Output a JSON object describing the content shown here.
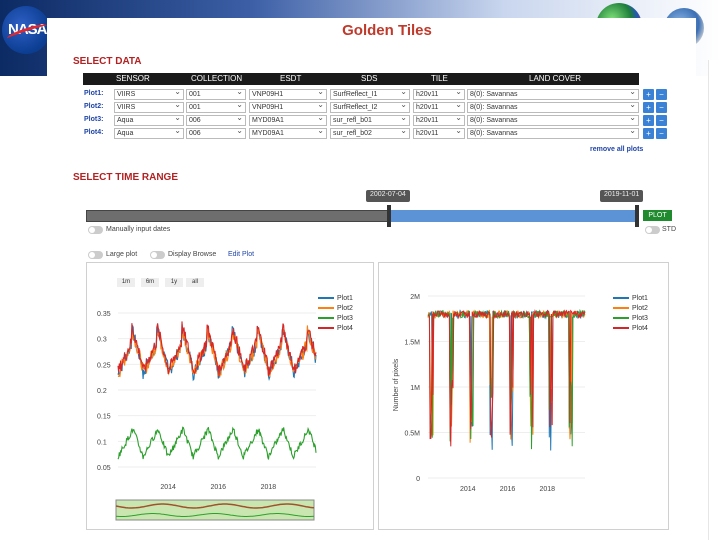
{
  "app": {
    "title": "Golden Tiles"
  },
  "select_data": {
    "title": "SELECT DATA",
    "columns": [
      "SENSOR",
      "COLLECTION",
      "ESDT",
      "SDS",
      "TILE",
      "LAND COVER"
    ],
    "rows": [
      {
        "label": "Plot1:",
        "sensor": "VIIRS",
        "collection": "001",
        "esdt": "VNP09H1",
        "sds": "SurfReflect_I1",
        "tile": "h20v11",
        "landcover": "8(0): Savannas"
      },
      {
        "label": "Plot2:",
        "sensor": "VIIRS",
        "collection": "001",
        "esdt": "VNP09H1",
        "sds": "SurfReflect_I2",
        "tile": "h20v11",
        "landcover": "8(0): Savannas"
      },
      {
        "label": "Plot3:",
        "sensor": "Aqua",
        "collection": "006",
        "esdt": "MYD09A1",
        "sds": "sur_refl_b01",
        "tile": "h20v11",
        "landcover": "8(0): Savannas"
      },
      {
        "label": "Plot4:",
        "sensor": "Aqua",
        "collection": "006",
        "esdt": "MYD09A1",
        "sds": "sur_refl_b02",
        "tile": "h20v11",
        "landcover": "8(0): Savannas"
      }
    ],
    "add_symbol": "+",
    "remove_symbol": "−",
    "remove_all": "remove all plots"
  },
  "time_range": {
    "title": "SELECT TIME RANGE",
    "start": "2002-07-04",
    "end": "2019-11-01",
    "plot_button": "PLOT",
    "manual_label": "Manually input dates",
    "std_label": "STD",
    "large_plot_label": "Large plot",
    "display_browse_label": "Display Browse",
    "edit_plot": "Edit Plot"
  },
  "colors": {
    "plot1": "#1f77b4",
    "plot2": "#ff7f0e",
    "plot3": "#2ca02c",
    "plot4": "#d62728",
    "accent_red": "#c0392b",
    "link_blue": "#2045a8",
    "range_blue": "#5b93d6"
  },
  "icons": {
    "nasa": "nasa-meatball-logo",
    "globe1": "earth-globe-icon",
    "globe2": "earth-globe-icon"
  },
  "range_buttons": [
    "1m",
    "6m",
    "1y",
    "all"
  ],
  "legend": [
    "Plot1",
    "Plot2",
    "Plot3",
    "Plot4"
  ],
  "chart_data": [
    {
      "type": "line",
      "ylabel": "",
      "x_ticks": [
        "2014",
        "2016",
        "2018"
      ],
      "y_ticks": [
        "0.05",
        "0.1",
        "0.15",
        "0.2",
        "0.25",
        "0.3",
        "0.35"
      ],
      "ylim": [
        0.05,
        0.35
      ],
      "x_range": [
        2012.0,
        2019.9
      ],
      "series": [
        {
          "name": "Plot1",
          "pattern": "seasonal",
          "base": 0.27,
          "amp": 0.05
        },
        {
          "name": "Plot2",
          "pattern": "seasonal",
          "base": 0.27,
          "amp": 0.05
        },
        {
          "name": "Plot3",
          "pattern": "seasonal",
          "base": 0.1,
          "amp": 0.03
        },
        {
          "name": "Plot4",
          "pattern": "seasonal",
          "base": 0.275,
          "amp": 0.05
        }
      ]
    },
    {
      "type": "line",
      "ylabel": "Number of pixels",
      "x_ticks": [
        "2014",
        "2016",
        "2018"
      ],
      "y_ticks": [
        "0",
        "0.5M",
        "1M",
        "1.5M",
        "2M"
      ],
      "ylim": [
        0,
        2000000
      ],
      "x_range": [
        2012.0,
        2019.9
      ],
      "series": [
        {
          "name": "Plot1",
          "pattern": "drops",
          "base": 1800000
        },
        {
          "name": "Plot2",
          "pattern": "drops",
          "base": 1800000
        },
        {
          "name": "Plot3",
          "pattern": "drops",
          "base": 1800000
        },
        {
          "name": "Plot4",
          "pattern": "drops",
          "base": 1800000
        }
      ]
    }
  ]
}
